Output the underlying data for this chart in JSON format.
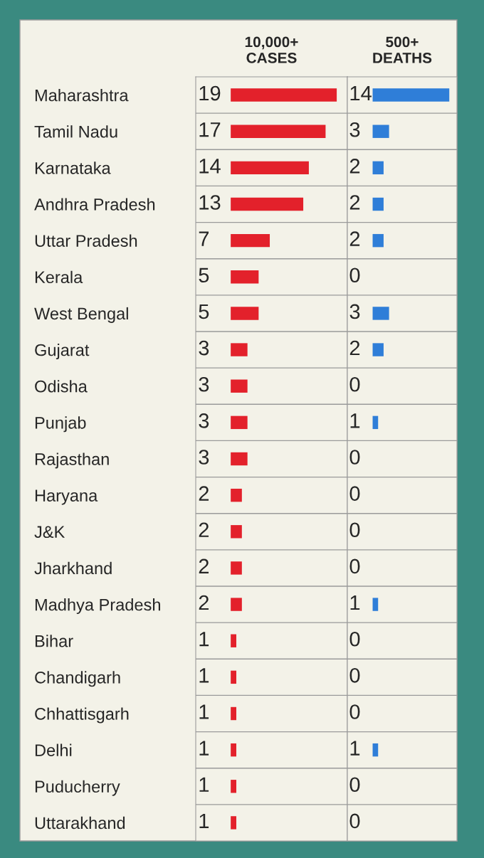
{
  "chart_data": [
    {
      "type": "bar",
      "orientation": "horizontal",
      "title": "10,000+\nCASES",
      "categories": [
        "Maharashtra",
        "Tamil Nadu",
        "Karnataka",
        "Andhra Pradesh",
        "Uttar Pradesh",
        "Kerala",
        "West Bengal",
        "Gujarat",
        "Odisha",
        "Punjab",
        "Rajasthan",
        "Haryana",
        "J&K",
        "Jharkhand",
        "Madhya Pradesh",
        "Bihar",
        "Chandigarh",
        "Chhattisgarh",
        "Delhi",
        "Puducherry",
        "Uttarakhand"
      ],
      "values": [
        19,
        17,
        14,
        13,
        7,
        5,
        5,
        3,
        3,
        3,
        3,
        2,
        2,
        2,
        2,
        1,
        1,
        1,
        1,
        1,
        1
      ],
      "color": "#e3212b",
      "data_labels": true
    },
    {
      "type": "bar",
      "orientation": "horizontal",
      "title": "500+\nDEATHS",
      "values": [
        14,
        3,
        2,
        2,
        2,
        0,
        3,
        2,
        0,
        1,
        0,
        0,
        0,
        0,
        1,
        0,
        0,
        0,
        1,
        0,
        0
      ],
      "color": "#2f7ed8",
      "data_labels": true,
      "tick_labels": false
    }
  ]
}
